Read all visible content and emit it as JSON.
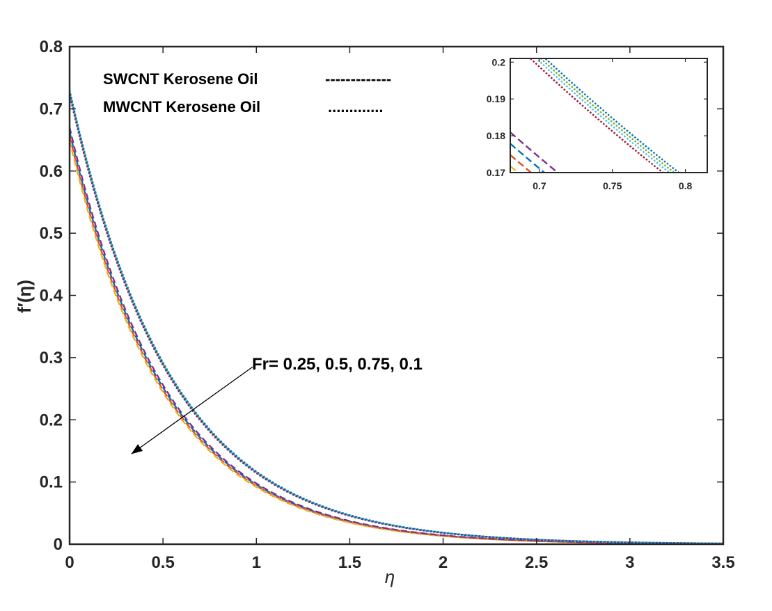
{
  "chart_data": {
    "type": "line",
    "title": "",
    "xlabel": "η",
    "ylabel": "f′(η)",
    "xlim": [
      0,
      3.5
    ],
    "ylim": [
      0,
      0.8
    ],
    "xticks": [
      0,
      0.5,
      1,
      1.5,
      2,
      2.5,
      3,
      3.5
    ],
    "xtick_labels": [
      "0",
      "0.5",
      "1",
      "1.5",
      "2",
      "2.5",
      "3",
      "3.5"
    ],
    "yticks": [
      0,
      0.1,
      0.2,
      0.3,
      0.4,
      0.5,
      0.6,
      0.7,
      0.8
    ],
    "ytick_labels": [
      "0",
      "0.1",
      "0.2",
      "0.3",
      "0.4",
      "0.5",
      "0.6",
      "0.7",
      "0.8"
    ],
    "legend": [
      {
        "label": "SWCNT Kerosene Oil",
        "sample": "-------------"
      },
      {
        "label": "MWCNT Kerosene Oil",
        "sample": "............."
      }
    ],
    "annotation": {
      "text": "Fr= 0.25, 0.5, 0.75, 0.1",
      "arrow_from": [
        0.98,
        0.285
      ],
      "arrow_to": [
        0.33,
        0.145
      ]
    },
    "series": [
      {
        "name": "SWCNT Fr=0.25",
        "style": "dashed",
        "color": "#0072BD",
        "f0": 0.663,
        "decay": 1.935
      },
      {
        "name": "SWCNT Fr=0.5",
        "style": "dashed",
        "color": "#D95319",
        "f0": 0.656,
        "decay": 1.945
      },
      {
        "name": "SWCNT Fr=0.75",
        "style": "dashed",
        "color": "#EDB120",
        "f0": 0.649,
        "decay": 1.955
      },
      {
        "name": "SWCNT Fr=0.1",
        "style": "dashed",
        "color": "#7E2F8E",
        "f0": 0.67,
        "decay": 1.925
      },
      {
        "name": "MWCNT Fr=0.25",
        "style": "dotted",
        "color": "#77AC30",
        "f0": 0.728,
        "decay": 1.836
      },
      {
        "name": "MWCNT Fr=0.5",
        "style": "dotted",
        "color": "#4DBEEE",
        "f0": 0.726,
        "decay": 1.84
      },
      {
        "name": "MWCNT Fr=0.75",
        "style": "dotted",
        "color": "#A2142F",
        "f0": 0.723,
        "decay": 1.845
      },
      {
        "name": "MWCNT Fr=0.1",
        "style": "dotted",
        "color": "#0072BD",
        "f0": 0.73,
        "decay": 1.832
      }
    ],
    "inset": {
      "xlim": [
        0.68,
        0.815
      ],
      "ylim": [
        0.17,
        0.201
      ],
      "xticks": [
        0.7,
        0.75,
        0.8
      ],
      "xtick_labels": [
        "0.7",
        "0.75",
        "0.8"
      ],
      "yticks": [
        0.17,
        0.18,
        0.19,
        0.2
      ],
      "ytick_labels": [
        "0.17",
        "0.18",
        "0.19",
        "0.2"
      ]
    }
  }
}
